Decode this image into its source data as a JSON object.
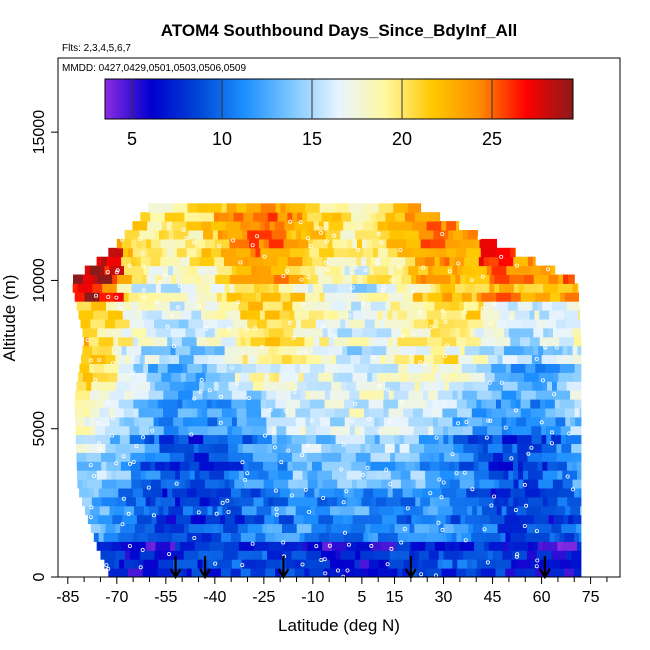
{
  "chart_data": {
    "type": "heatmap",
    "title": "ATOM4 Southbound Days_Since_BdyInf_All",
    "flights_note": "Flts: 2,3,4,5,6,7",
    "dates_note": "MMDD: 0427,0429,0501,0503,0506,0509",
    "xlabel": "Latitude (deg N)",
    "ylabel": "Altitude (m)",
    "xlim": [
      -88,
      84
    ],
    "ylim": [
      0,
      17500
    ],
    "x_ticks": [
      -85,
      -70,
      -55,
      -40,
      -25,
      -10,
      5,
      15,
      30,
      45,
      60,
      75
    ],
    "x_tick_labels": [
      "-85",
      "-70",
      "-55",
      "-40",
      "-25",
      "-10",
      "5",
      "15",
      "30",
      "45",
      "60",
      "75"
    ],
    "x_minor_ticks": [
      -80,
      -75,
      -65,
      -60,
      -50,
      -45,
      -35,
      -30,
      -20,
      -15,
      -5,
      0,
      10,
      20,
      25,
      35,
      40,
      50,
      55,
      65,
      70,
      80
    ],
    "y_ticks": [
      0,
      5000,
      10000,
      15000
    ],
    "y_tick_labels": [
      "0",
      "5000",
      "10000",
      "15000"
    ],
    "colorbar": {
      "range": [
        3.5,
        29.5
      ],
      "ticks": [
        5,
        10,
        15,
        20,
        25
      ],
      "tick_labels": [
        "5",
        "10",
        "15",
        "20",
        "25"
      ],
      "colors": [
        "#8a2be2",
        "#0000cd",
        "#0047d6",
        "#1e90ff",
        "#7ec8ff",
        "#e8f4ff",
        "#fff8a0",
        "#ffc800",
        "#ff8c00",
        "#ff0000",
        "#8b1a1a"
      ]
    },
    "value_range": [
      4,
      29
    ],
    "lat_range_by_altitude": [
      {
        "alt": 0,
        "lat": [
          -72,
          72
        ]
      },
      {
        "alt": 1000,
        "lat": [
          -76,
          72
        ]
      },
      {
        "alt": 3000,
        "lat": [
          -82,
          72
        ]
      },
      {
        "alt": 6000,
        "lat": [
          -83,
          72
        ]
      },
      {
        "alt": 8000,
        "lat": [
          -80,
          72
        ]
      },
      {
        "alt": 10000,
        "lat": [
          -84,
          71
        ]
      },
      {
        "alt": 11000,
        "lat": [
          -72,
          51
        ]
      },
      {
        "alt": 12500,
        "lat": [
          -60,
          22
        ]
      }
    ],
    "profile_markers": {
      "latitudes": [
        -52,
        -43,
        -19,
        20,
        61
      ],
      "label": "down-arrow"
    }
  }
}
